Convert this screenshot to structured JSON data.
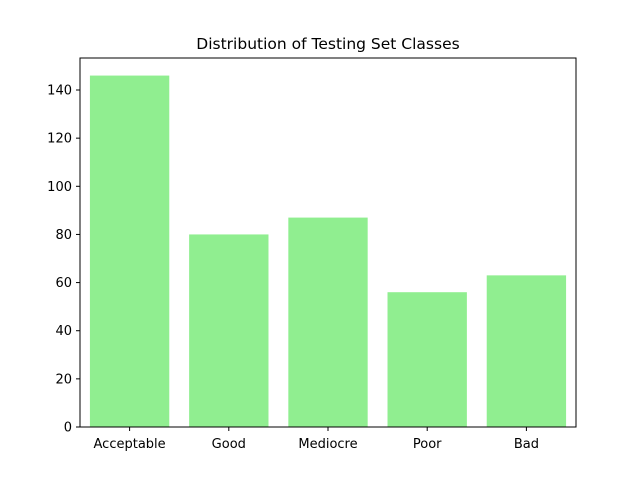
{
  "chart_data": {
    "type": "bar",
    "title": "Distribution of Testing Set Classes",
    "xlabel": "",
    "ylabel": "",
    "categories": [
      "Acceptable",
      "Good",
      "Mediocre",
      "Poor",
      "Bad"
    ],
    "values": [
      146,
      80,
      87,
      56,
      63
    ],
    "ylim": [
      0,
      153.3
    ],
    "yticks": [
      0,
      20,
      40,
      60,
      80,
      100,
      120,
      140
    ],
    "grid": false,
    "legend": "none",
    "colors": {
      "bar": "#90ee90",
      "axis": "#000000"
    }
  }
}
